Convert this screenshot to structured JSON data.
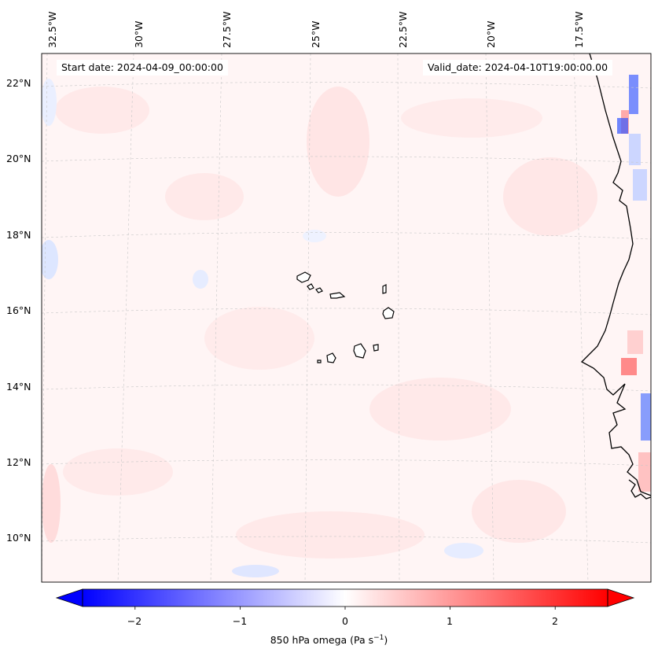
{
  "map": {
    "start_date": "Start date: 2024-04-09_00:00:00",
    "valid_date": "Valid_date: 2024-04-10T19:00:00.00",
    "lon_labels": [
      "32.5°W",
      "30°W",
      "27.5°W",
      "25°W",
      "22.5°W",
      "20°W",
      "17.5°W"
    ],
    "lat_labels": [
      "22°N",
      "20°N",
      "18°N",
      "16°N",
      "14°N",
      "12°N",
      "10°N"
    ],
    "field": "850 hPa omega"
  },
  "colorbar": {
    "label_main": "850 hPa omega (Pa s",
    "label_exp": "−1",
    "label_close": ")",
    "ticks": [
      "−2",
      "−1",
      "0",
      "1",
      "2"
    ],
    "tick_values": [
      -2,
      -1,
      0,
      1,
      2
    ],
    "range": [
      -2.5,
      2.5
    ],
    "cmap": "bwr",
    "color_low": "#0000ff",
    "color_mid": "#ffffff",
    "color_high": "#ff0000"
  }
}
